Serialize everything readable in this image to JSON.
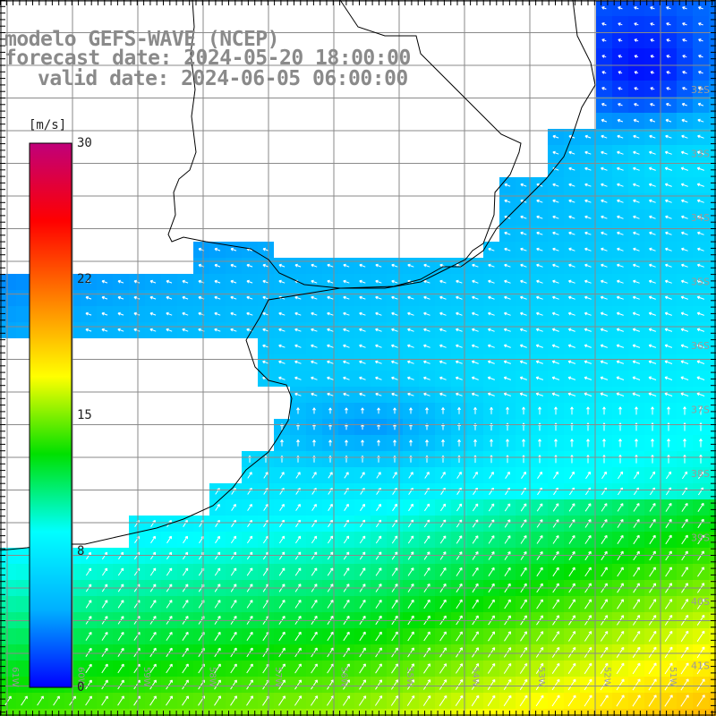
{
  "title": {
    "model": "modelo GEFS-WAVE (NCEP)",
    "forecast": "forecast date: 2024-05-20 18:00:00",
    "valid": "valid date: 2024-06-05 06:00:00"
  },
  "colorbar": {
    "unit": "[m/s]",
    "ticks": [
      "30",
      "22",
      "15",
      "8",
      "0"
    ],
    "tick_values": [
      30,
      22,
      15,
      8,
      0
    ],
    "range": [
      0,
      30
    ],
    "colors": [
      "#0000ff",
      "#00b0ff",
      "#00ffff",
      "#00e000",
      "#ffff00",
      "#ff8000",
      "#ff0000",
      "#c0007a"
    ]
  },
  "axes": {
    "lat_labels": [
      "32S",
      "33S",
      "34S",
      "35S",
      "36S",
      "37S",
      "38S",
      "39S",
      "40S",
      "41S"
    ],
    "lon_labels": [
      "61W",
      "60W",
      "59W",
      "58W",
      "57W",
      "56W",
      "55W",
      "54W",
      "53W",
      "52W",
      "51W"
    ]
  },
  "field": {
    "variable": "wind speed",
    "land_color": "#ffffff",
    "grid_color": "#8a8a8a",
    "coast_color": "#000000"
  }
}
